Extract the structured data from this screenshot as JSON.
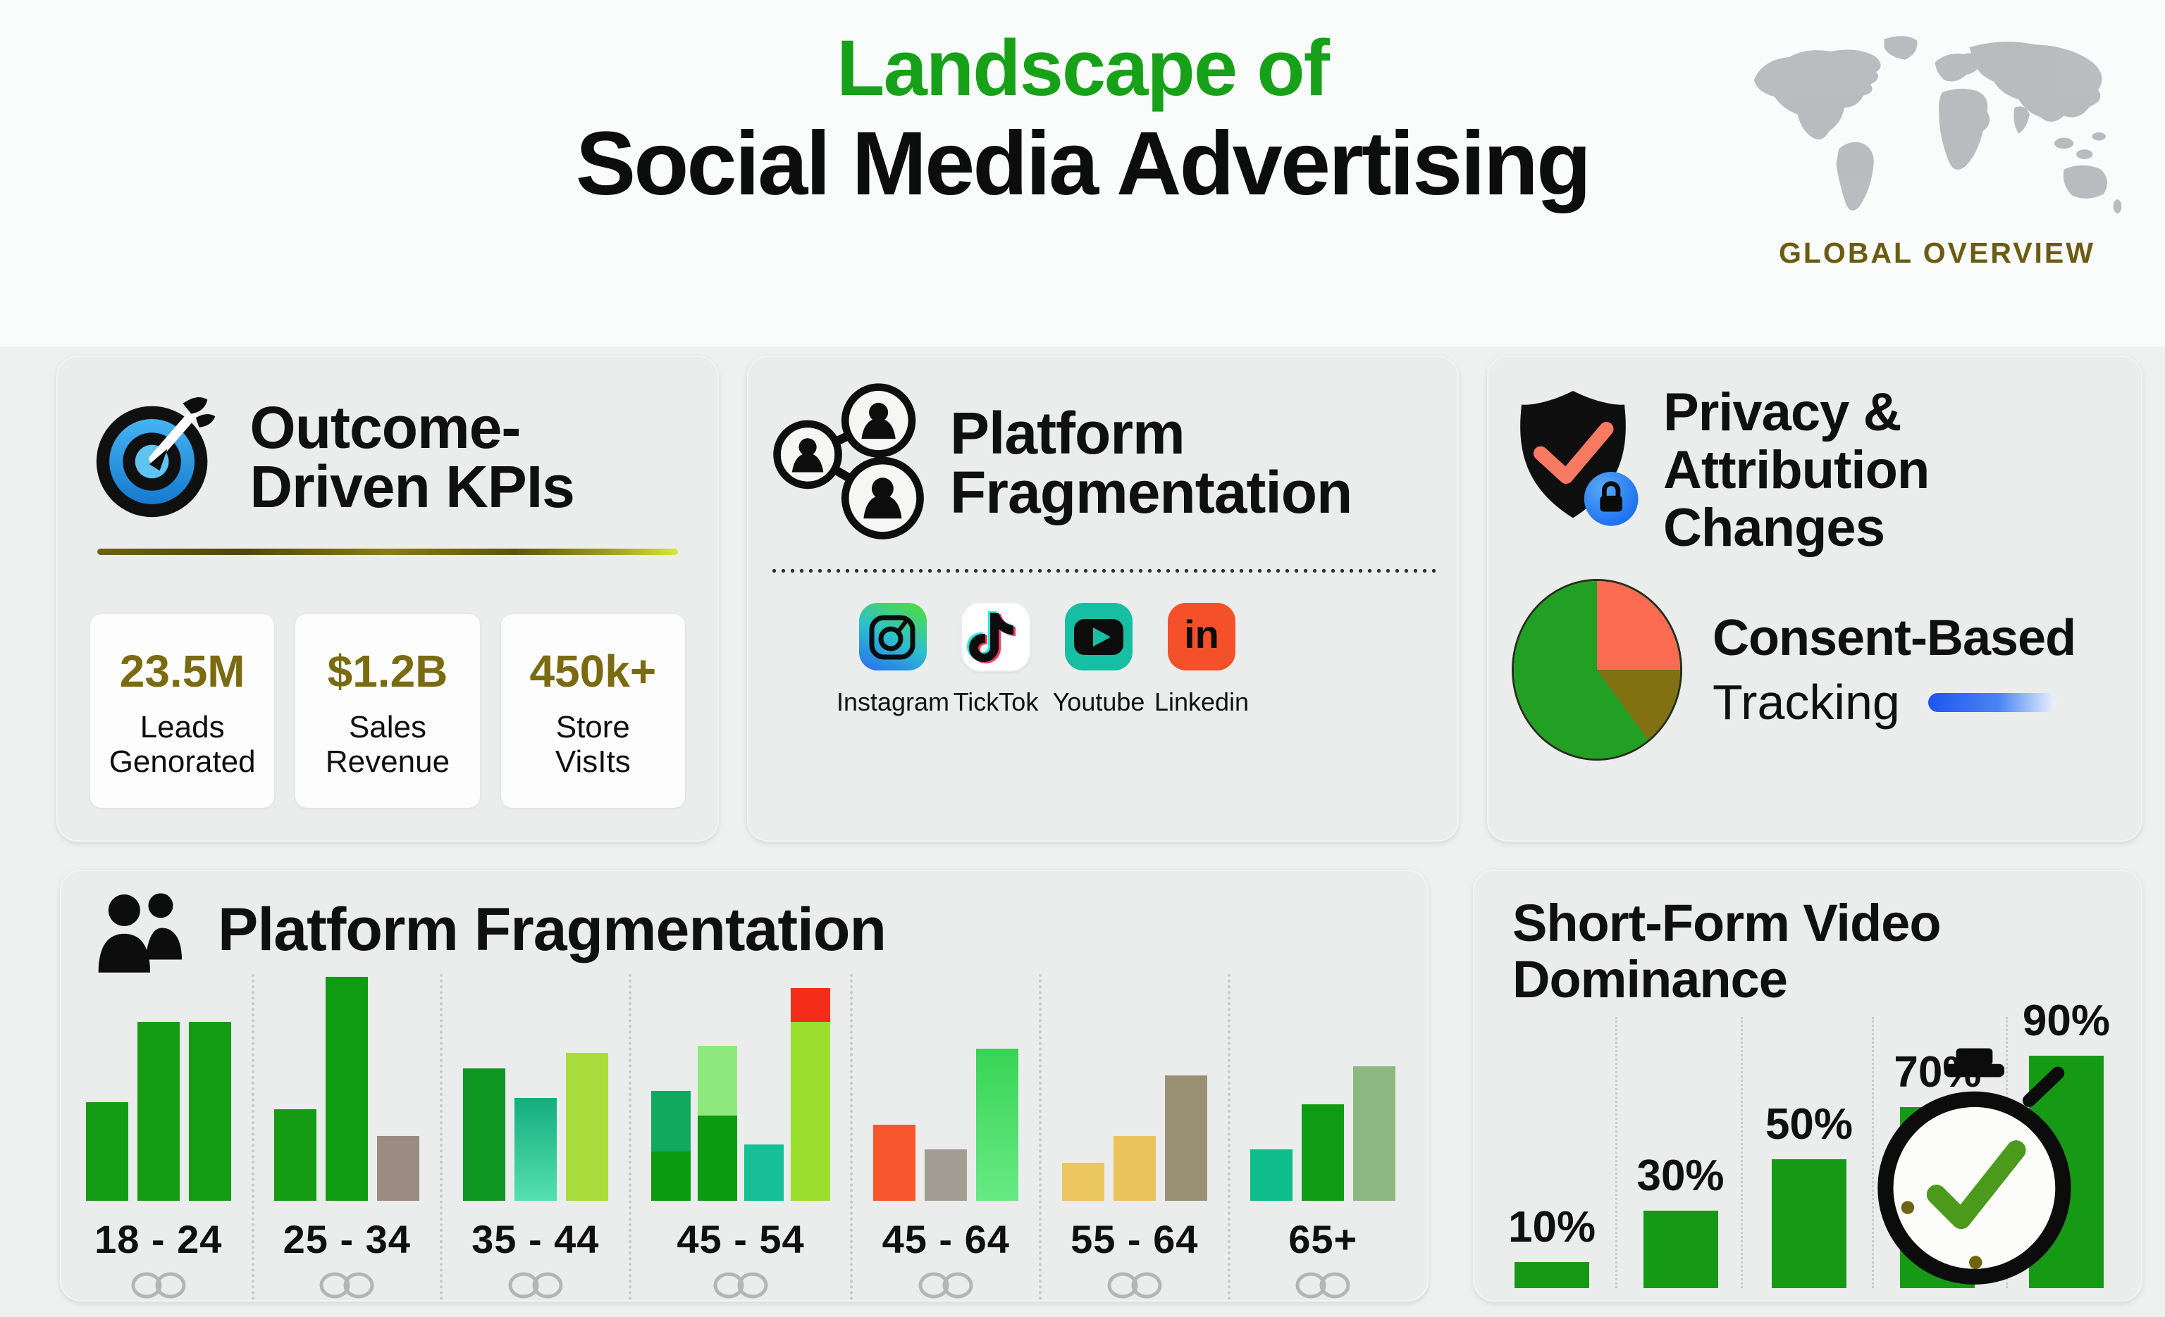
{
  "header": {
    "title_line1": "Landscape of",
    "title_line2": "Social Media Advertising",
    "title_line1_color": "#16a118",
    "map_label": "GLOBAL OVERVIEW",
    "map_label_color": "#6b5c12"
  },
  "kpi_card": {
    "title": "Outcome-Driven KPIs",
    "value_color": "#7a6a10",
    "stats": [
      {
        "value": "23.5M",
        "label": "Leads Genorated"
      },
      {
        "value": "$1.2B",
        "label": "Sales Revenue"
      },
      {
        "value": "450k+",
        "label": "Store VisIts"
      }
    ]
  },
  "platform_card": {
    "title": "Platform Fragmentation",
    "platforms": [
      {
        "label": "Instagram"
      },
      {
        "label": "TickTok"
      },
      {
        "label": "Youtube"
      },
      {
        "label": "Linkedin"
      }
    ]
  },
  "privacy_card": {
    "title": "Privacy & Attribution Changes",
    "consent_bold": "Consent-Based",
    "consent_regular": "Tracking"
  },
  "age_chart_card": {
    "title": "Platform Fragmentation"
  },
  "video_card": {
    "title": "Short-Form Video Dominance"
  },
  "chart_data": [
    {
      "id": "platform-fragmentation-by-age",
      "type": "bar",
      "title": "Platform Fragmentation",
      "categories": [
        "18 - 24",
        "25 - 34",
        "35 - 44",
        "45 - 54",
        "45 - 64",
        "55 - 64",
        "65+"
      ],
      "value_note": "relative bar heights in % of tallest bar; stacked segments listed bottom-to-top",
      "groups": [
        [
          [
            {
              "v": 44,
              "c": "#149c14"
            }
          ],
          [
            {
              "v": 80,
              "c": "#149c14"
            }
          ],
          [
            {
              "v": 80,
              "c": "#149c14"
            }
          ]
        ],
        [
          [
            {
              "v": 41,
              "c": "#149c14"
            }
          ],
          [
            {
              "v": 100,
              "c": "#0f9c12"
            }
          ],
          [
            {
              "v": 29,
              "c": "#9c8b82"
            }
          ]
        ],
        [
          [
            {
              "v": 59,
              "c": "#0e9722"
            }
          ],
          [
            {
              "v": 46,
              "c": "#14ad7c",
              "c2": "#55e0b0"
            }
          ],
          [
            {
              "v": 66,
              "c": "#a8dc3c"
            }
          ]
        ],
        [
          [
            {
              "v": 22,
              "c": "#0a9c10"
            },
            {
              "v": 27,
              "c": "#10a95e"
            }
          ],
          [
            {
              "v": 38,
              "c": "#0a9c10"
            },
            {
              "v": 31,
              "c": "#8fe87e"
            }
          ],
          [
            {
              "v": 25,
              "c": "#16bf96"
            }
          ],
          [
            {
              "v": 80,
              "c": "#9ade2e"
            },
            {
              "v": 15,
              "c": "#f42c1a"
            }
          ]
        ],
        [
          [
            {
              "v": 34,
              "c": "#f8562c"
            }
          ],
          [
            {
              "v": 23,
              "c": "#a39d93"
            }
          ],
          [
            {
              "v": 68,
              "c": "#38d455",
              "c2": "#68ea84"
            }
          ]
        ],
        [
          [
            {
              "v": 17,
              "c": "#ecc661"
            }
          ],
          [
            {
              "v": 29,
              "c": "#eac35d"
            }
          ],
          [
            {
              "v": 56,
              "c": "#999076"
            }
          ]
        ],
        [
          [
            {
              "v": 23,
              "c": "#10bd8d"
            }
          ],
          [
            {
              "v": 43,
              "c": "#0f9c14"
            }
          ],
          [
            {
              "v": 60,
              "c": "#8cb981"
            }
          ]
        ]
      ]
    },
    {
      "id": "short-form-video-dominance",
      "type": "bar",
      "title": "Short-Form Video Dominance",
      "values": [
        10,
        30,
        50,
        70,
        90
      ],
      "labels": [
        "10%",
        "30%",
        "50%",
        "70%",
        "90%"
      ],
      "bar_color": "#169a16",
      "ylim": [
        0,
        90
      ]
    },
    {
      "id": "consent-tracking-pie",
      "type": "pie",
      "start_angle_deg": 0,
      "slices": [
        {
          "value": 25,
          "color": "#fa6b52"
        },
        {
          "value": 15,
          "color": "#817111"
        },
        {
          "value": 60,
          "color": "#22a024"
        }
      ]
    }
  ]
}
